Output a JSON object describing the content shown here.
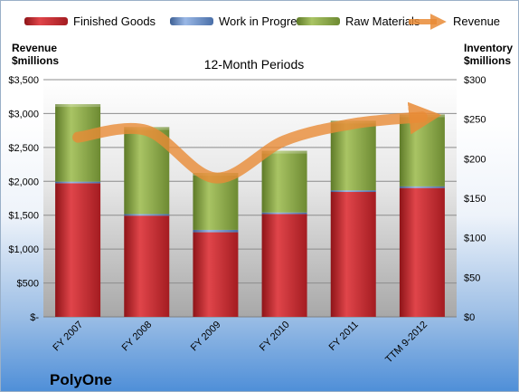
{
  "chart_data": {
    "type": "bar",
    "title": "12-Month Periods",
    "company": "PolyOne",
    "categories": [
      "FY 2007",
      "FY 2008",
      "FY 2009",
      "FY 2010",
      "FY 2011",
      "TTM 9-2012"
    ],
    "series": [
      {
        "name": "Finished Goods",
        "color": "#c0262b",
        "axis": "right",
        "values": [
          169,
          128,
          107,
          130,
          158,
          163
        ]
      },
      {
        "name": "Work in Progress",
        "color": "#5b86c4",
        "axis": "right",
        "values": [
          2,
          2,
          3,
          2,
          2,
          2
        ]
      },
      {
        "name": "Raw Materials",
        "color": "#86a343",
        "axis": "right",
        "values": [
          98,
          110,
          72,
          78,
          88,
          91
        ]
      },
      {
        "name": "Revenue",
        "color": "#e98b36",
        "axis": "left",
        "type": "line",
        "values": [
          2650,
          2750,
          2050,
          2600,
          2850,
          2950
        ]
      }
    ],
    "left_axis": {
      "label_line1": "Revenue",
      "label_line2": "$millions",
      "ylim": [
        0,
        3500
      ],
      "ticks": [
        "$-",
        "$500",
        "$1,000",
        "$1,500",
        "$2,000",
        "$2,500",
        "$3,000",
        "$3,500"
      ]
    },
    "right_axis": {
      "label_line1": "Inventory",
      "label_line2": "$millions",
      "ylim": [
        0,
        300
      ],
      "ticks": [
        "$0",
        "$50",
        "$100",
        "$150",
        "$200",
        "$250",
        "$300"
      ]
    },
    "grid": true,
    "legend_position": "top"
  }
}
